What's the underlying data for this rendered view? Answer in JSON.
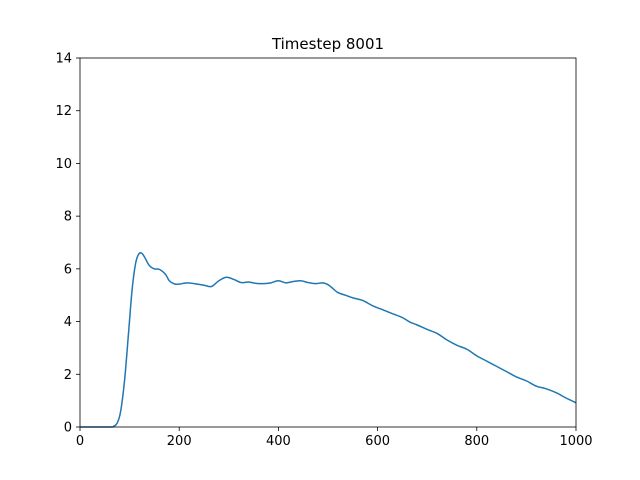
{
  "chart_data": {
    "type": "line",
    "title": "Timestep 8001",
    "xlabel": "",
    "ylabel": "",
    "xlim": [
      0,
      1000
    ],
    "ylim": [
      0,
      14
    ],
    "xticks": [
      0,
      200,
      400,
      600,
      800,
      1000
    ],
    "yticks": [
      0,
      2,
      4,
      6,
      8,
      10,
      12,
      14
    ],
    "grid": false,
    "series": [
      {
        "color": "#1f77b4",
        "x": [
          0,
          60,
          68,
          75,
          82,
          90,
          98,
          105,
          112,
          118,
          124,
          130,
          140,
          150,
          160,
          172,
          180,
          190,
          200,
          215,
          230,
          250,
          265,
          280,
          295,
          310,
          325,
          340,
          355,
          370,
          385,
          400,
          415,
          430,
          445,
          460,
          475,
          490,
          500,
          510,
          520,
          535,
          550,
          570,
          590,
          610,
          630,
          650,
          665,
          680,
          700,
          720,
          740,
          760,
          780,
          800,
          820,
          840,
          860,
          880,
          900,
          920,
          940,
          960,
          980,
          1000
        ],
        "y": [
          0,
          0,
          0.03,
          0.15,
          0.6,
          1.8,
          3.6,
          5.2,
          6.2,
          6.55,
          6.6,
          6.45,
          6.12,
          6.0,
          5.98,
          5.8,
          5.55,
          5.43,
          5.42,
          5.47,
          5.44,
          5.38,
          5.33,
          5.55,
          5.68,
          5.6,
          5.48,
          5.5,
          5.45,
          5.44,
          5.47,
          5.55,
          5.47,
          5.52,
          5.55,
          5.48,
          5.44,
          5.47,
          5.4,
          5.25,
          5.1,
          5.0,
          4.9,
          4.8,
          4.6,
          4.45,
          4.3,
          4.15,
          3.98,
          3.87,
          3.7,
          3.55,
          3.3,
          3.1,
          2.95,
          2.7,
          2.5,
          2.3,
          2.1,
          1.9,
          1.75,
          1.55,
          1.45,
          1.3,
          1.1,
          0.92
        ]
      }
    ]
  }
}
